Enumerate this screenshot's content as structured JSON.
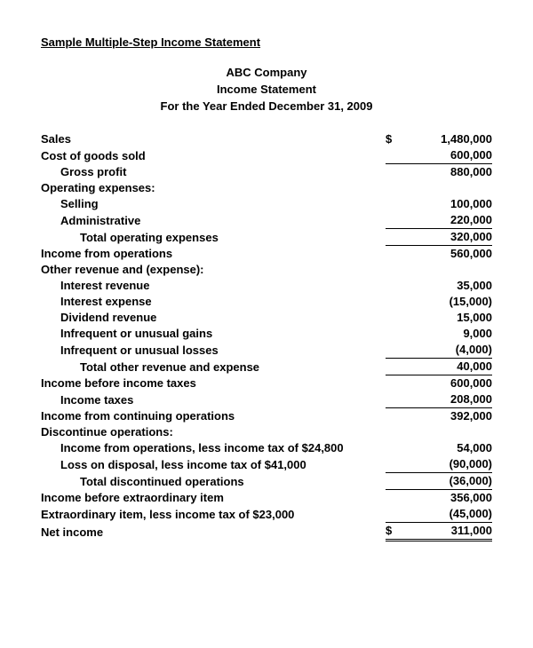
{
  "title": "Sample Multiple-Step Income Statement",
  "header": {
    "company": "ABC Company",
    "statement": "Income Statement",
    "period": "For the Year Ended December 31, 2009"
  },
  "currency": "$",
  "rows": {
    "sales": {
      "label": "Sales",
      "amount": "1,480,000"
    },
    "cogs": {
      "label": "Cost of goods sold",
      "amount": "600,000"
    },
    "gross_profit": {
      "label": "Gross profit",
      "amount": "880,000"
    },
    "opex_header": {
      "label": "Operating expenses:"
    },
    "selling": {
      "label": "Selling",
      "amount": "100,000"
    },
    "admin": {
      "label": "Administrative",
      "amount": "220,000"
    },
    "total_opex": {
      "label": "Total operating expenses",
      "amount": "320,000"
    },
    "op_income": {
      "label": "Income from operations",
      "amount": "560,000"
    },
    "other_header": {
      "label": "Other revenue and (expense):"
    },
    "int_rev": {
      "label": "Interest revenue",
      "amount": "35,000"
    },
    "int_exp": {
      "label": "Interest expense",
      "amount": "(15,000)"
    },
    "div_rev": {
      "label": "Dividend revenue",
      "amount": "15,000"
    },
    "unusual_gain": {
      "label": "Infrequent or unusual gains",
      "amount": "9,000"
    },
    "unusual_loss": {
      "label": "Infrequent or unusual losses",
      "amount": "(4,000)"
    },
    "total_other": {
      "label": "Total other revenue and expense",
      "amount": "40,000"
    },
    "pretax": {
      "label": "Income before income taxes",
      "amount": "600,000"
    },
    "tax": {
      "label": "Income taxes",
      "amount": "208,000"
    },
    "cont_ops": {
      "label": "Income from continuing operations",
      "amount": "392,000"
    },
    "disc_header": {
      "label": "Discontinue operations:"
    },
    "disc_income": {
      "label": "Income from operations, less income tax of $24,800",
      "amount": "54,000"
    },
    "disc_loss": {
      "label": "Loss on disposal, less income tax of $41,000",
      "amount": "(90,000)"
    },
    "total_disc": {
      "label": "Total discontinued operations",
      "amount": "(36,000)"
    },
    "before_extra": {
      "label": "Income before extraordinary item",
      "amount": "356,000"
    },
    "extra": {
      "label": "Extraordinary item, less income tax of $23,000",
      "amount": "(45,000)"
    },
    "net": {
      "label": "Net income",
      "amount": "311,000"
    }
  }
}
